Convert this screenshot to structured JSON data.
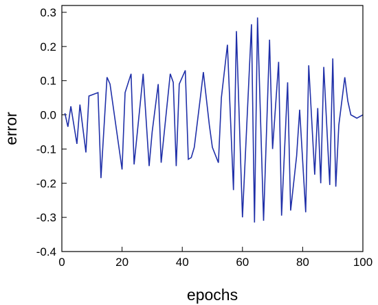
{
  "chart_data": {
    "type": "line",
    "xlabel": "epochs",
    "ylabel": "error",
    "xlim": [
      0,
      100
    ],
    "ylim": [
      -0.4,
      0.32
    ],
    "x_ticks": [
      0,
      20,
      40,
      60,
      80,
      100
    ],
    "x_tick_labels": [
      "0",
      "20",
      "40",
      "60",
      "80",
      "100"
    ],
    "y_ticks": [
      -0.4,
      -0.3,
      -0.2,
      -0.1,
      0.0,
      0.1,
      0.2,
      0.3
    ],
    "y_tick_labels": [
      "-0.4",
      "-0.3",
      "-0.2",
      "-0.1",
      "0.0",
      "0.1",
      "0.2",
      "0.3"
    ],
    "grid": false,
    "line_color": "#1f2fa8",
    "series": [
      {
        "x": [
          1,
          2,
          3,
          5,
          6,
          8,
          9,
          12,
          13,
          15,
          16,
          20,
          21,
          23,
          24,
          26,
          27,
          29,
          30,
          32,
          33,
          36,
          37,
          38,
          39,
          41,
          42,
          43,
          44,
          46,
          47,
          49,
          50,
          52,
          53,
          55,
          57,
          58,
          60,
          63,
          64,
          65,
          67,
          69,
          70,
          72,
          73,
          75,
          76,
          78,
          79,
          81,
          82,
          84,
          85,
          86,
          87,
          89,
          90,
          91,
          92,
          94,
          95,
          96,
          97,
          98,
          100
        ],
        "y": [
          0.005,
          -0.035,
          0.025,
          -0.085,
          0.03,
          -0.11,
          0.055,
          0.065,
          -0.185,
          0.11,
          0.09,
          -0.16,
          0.065,
          0.12,
          -0.145,
          0.03,
          0.12,
          -0.15,
          -0.05,
          0.09,
          -0.14,
          0.12,
          0.095,
          -0.15,
          0.09,
          0.13,
          -0.13,
          -0.125,
          -0.095,
          0.05,
          0.125,
          -0.03,
          -0.095,
          -0.14,
          0.05,
          0.205,
          -0.22,
          0.245,
          -0.3,
          0.265,
          -0.315,
          0.285,
          -0.31,
          0.22,
          -0.1,
          0.155,
          -0.295,
          0.095,
          -0.28,
          -0.12,
          0.015,
          -0.285,
          0.145,
          -0.175,
          0.02,
          -0.2,
          0.14,
          -0.205,
          0.165,
          -0.21,
          -0.03,
          0.11,
          0.04,
          0.0,
          -0.005,
          -0.01,
          0.0
        ]
      }
    ]
  }
}
